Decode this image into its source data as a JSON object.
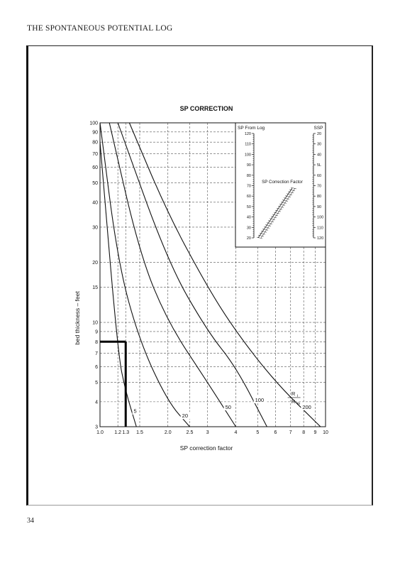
{
  "page": {
    "running_head": "THE SPONTANEOUS POTENTIAL LOG",
    "page_number": "34"
  },
  "chart_data": {
    "type": "line",
    "title": "SP CORRECTION",
    "xlabel": "SP correction factor",
    "ylabel": "bed thickness – feet",
    "x_scale": "log",
    "y_scale": "log",
    "xlim": [
      1.0,
      10
    ],
    "ylim": [
      3,
      100
    ],
    "grid": true,
    "x_ticks": [
      {
        "v": 1.0,
        "label": "1.0"
      },
      {
        "v": 1.2,
        "label": "1.2"
      },
      {
        "v": 1.3,
        "label": "1.3"
      },
      {
        "v": 1.5,
        "label": "1.5"
      },
      {
        "v": 2.0,
        "label": "2.0"
      },
      {
        "v": 2.5,
        "label": "2.5"
      },
      {
        "v": 3,
        "label": "3"
      },
      {
        "v": 4,
        "label": "4"
      },
      {
        "v": 5,
        "label": "5"
      },
      {
        "v": 6,
        "label": "6"
      },
      {
        "v": 7,
        "label": "7"
      },
      {
        "v": 8,
        "label": "8"
      },
      {
        "v": 9,
        "label": "9"
      },
      {
        "v": 10,
        "label": "10"
      }
    ],
    "y_ticks": [
      {
        "v": 3,
        "label": "3"
      },
      {
        "v": 4,
        "label": "4"
      },
      {
        "v": 5,
        "label": "5"
      },
      {
        "v": 6,
        "label": "6"
      },
      {
        "v": 7,
        "label": "7"
      },
      {
        "v": 8,
        "label": "8"
      },
      {
        "v": 9,
        "label": "9"
      },
      {
        "v": 10,
        "label": "10"
      },
      {
        "v": 15,
        "label": "15"
      },
      {
        "v": 20,
        "label": "20"
      },
      {
        "v": 30,
        "label": "30"
      },
      {
        "v": 40,
        "label": "40"
      },
      {
        "v": 50,
        "label": "50"
      },
      {
        "v": 60,
        "label": "60"
      },
      {
        "v": 70,
        "label": "70"
      },
      {
        "v": 80,
        "label": "80"
      },
      {
        "v": 90,
        "label": "90"
      },
      {
        "v": 100,
        "label": "100"
      }
    ],
    "series": [
      {
        "name": "5",
        "points": [
          [
            1.0,
            80
          ],
          [
            1.2,
            7
          ],
          [
            1.3,
            4.5
          ],
          [
            1.45,
            3
          ]
        ]
      },
      {
        "name": "20",
        "points": [
          [
            1.0,
            100
          ],
          [
            1.2,
            20
          ],
          [
            1.5,
            8
          ],
          [
            2.0,
            4
          ],
          [
            2.5,
            3
          ]
        ]
      },
      {
        "name": "50",
        "points": [
          [
            1.1,
            100
          ],
          [
            1.5,
            22
          ],
          [
            2.0,
            10
          ],
          [
            3,
            5
          ],
          [
            4,
            3
          ]
        ]
      },
      {
        "name": "100",
        "points": [
          [
            1.2,
            100
          ],
          [
            2.0,
            20
          ],
          [
            3,
            9
          ],
          [
            4,
            6
          ],
          [
            5.5,
            3
          ]
        ]
      },
      {
        "name": "200",
        "points": [
          [
            1.35,
            100
          ],
          [
            2.0,
            35
          ],
          [
            3,
            15
          ],
          [
            4,
            9
          ],
          [
            6,
            5
          ],
          [
            9.5,
            3
          ]
        ]
      }
    ],
    "curve_label_prefix": "R",
    "curve_label_numerator": "R",
    "curve_label_num_sub": "i",
    "curve_label_denominator": "R",
    "curve_label_den_sub": "m",
    "example": {
      "bed_thickness": 8,
      "correction_factor": 1.3
    },
    "nomograph": {
      "left_title": "SP From Log",
      "right_title": "SSP",
      "center_title": "SP Correction Factor",
      "left_ticks": [
        "120",
        "110",
        "100",
        "90",
        "80",
        "70",
        "60",
        "50",
        "40",
        "30",
        "20"
      ],
      "right_ticks": [
        "20",
        "30",
        "40",
        "5L",
        "60",
        "70",
        "80",
        "90",
        "100",
        "110",
        "120"
      ]
    }
  }
}
